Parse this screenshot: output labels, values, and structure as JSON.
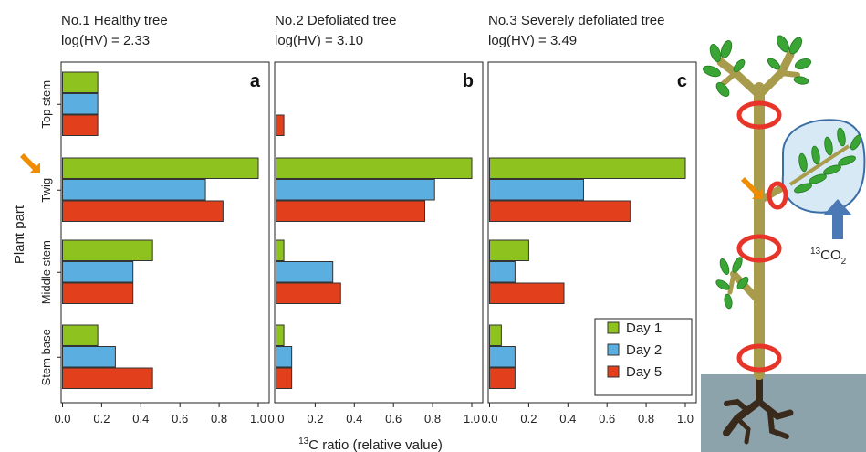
{
  "colors": {
    "day1": "#8dc21f",
    "day2": "#5aafe0",
    "day5": "#e2401c",
    "arrow": "#f08c00",
    "stem": "#a99b4c",
    "leaf": "#3aa535",
    "ring": "#e8352a",
    "soil": "#8da3ab",
    "root": "#3a2a1c",
    "bag": "#d6e9f5",
    "co2_arrow": "#4a79b5"
  },
  "chart_data": [
    {
      "type": "bar",
      "orientation": "horizontal",
      "panel_letter": "a",
      "title": "No.1 Healthy tree",
      "subtitle": "log(HV) = 2.33",
      "categories": [
        "Top stem",
        "Twig",
        "Middle stem",
        "Stem base"
      ],
      "series": [
        {
          "name": "Day 1",
          "values": [
            0.18,
            1.0,
            0.46,
            0.18
          ]
        },
        {
          "name": "Day 2",
          "values": [
            0.18,
            0.73,
            0.36,
            0.27
          ]
        },
        {
          "name": "Day 5",
          "values": [
            0.18,
            0.82,
            0.36,
            0.46
          ]
        }
      ],
      "xlim": [
        0,
        1.05
      ],
      "xticks": [
        "0.0",
        "0.2",
        "0.4",
        "0.6",
        "0.8",
        "1.0"
      ]
    },
    {
      "type": "bar",
      "orientation": "horizontal",
      "panel_letter": "b",
      "title": "No.2 Defoliated tree",
      "subtitle": "log(HV) = 3.10",
      "categories": [
        "Top stem",
        "Twig",
        "Middle stem",
        "Stem base"
      ],
      "series": [
        {
          "name": "Day 1",
          "values": [
            0.0,
            1.0,
            0.04,
            0.04
          ]
        },
        {
          "name": "Day 2",
          "values": [
            0.0,
            0.81,
            0.29,
            0.08
          ]
        },
        {
          "name": "Day 5",
          "values": [
            0.04,
            0.76,
            0.33,
            0.08
          ]
        }
      ],
      "xlim": [
        0,
        1.05
      ],
      "xticks": [
        "0.0",
        "0.2",
        "0.4",
        "0.6",
        "0.8",
        "1.0"
      ]
    },
    {
      "type": "bar",
      "orientation": "horizontal",
      "panel_letter": "c",
      "title": "No.3 Severely defoliated tree",
      "subtitle": "log(HV) = 3.49",
      "categories": [
        "Top stem",
        "Twig",
        "Middle stem",
        "Stem base"
      ],
      "series": [
        {
          "name": "Day 1",
          "values": [
            0.0,
            1.0,
            0.2,
            0.06
          ]
        },
        {
          "name": "Day 2",
          "values": [
            0.0,
            0.48,
            0.13,
            0.13
          ]
        },
        {
          "name": "Day 5",
          "values": [
            0.0,
            0.72,
            0.38,
            0.13
          ]
        }
      ],
      "xlim": [
        0,
        1.05
      ],
      "xticks": [
        "0.0",
        "0.2",
        "0.4",
        "0.6",
        "0.8",
        "1.0"
      ]
    }
  ],
  "shared": {
    "ylabel": "Plant part",
    "xlabel_sup": "13",
    "xlabel_rest": "C ratio (relative value)",
    "legend": [
      "Day 1",
      "Day 2",
      "Day 5"
    ]
  },
  "diagram": {
    "co2_sup": "13",
    "co2_main": "CO",
    "co2_sub": "2"
  }
}
